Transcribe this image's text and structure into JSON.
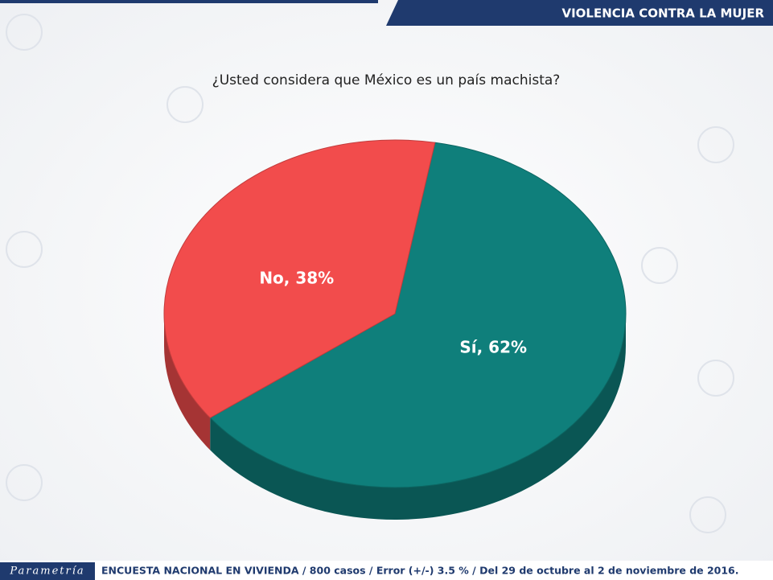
{
  "header": {
    "title": "VIOLENCIA CONTRA LA MUJER"
  },
  "chart_data": {
    "type": "pie",
    "title": "¿Usted considera que México es un país machista?",
    "categories": [
      "Sí",
      "No"
    ],
    "values": [
      62,
      38
    ],
    "value_labels": [
      "Sí, 62%",
      "No, 38%"
    ],
    "colors": [
      "#0f7f7b",
      "#f24c4c"
    ]
  },
  "footer": {
    "brand": "Parametría",
    "note": "ENCUESTA NACIONAL EN VIVIENDA / 800 casos / Error (+/-) 3.5 % / Del 29 de octubre al 2 de noviembre de 2016."
  }
}
